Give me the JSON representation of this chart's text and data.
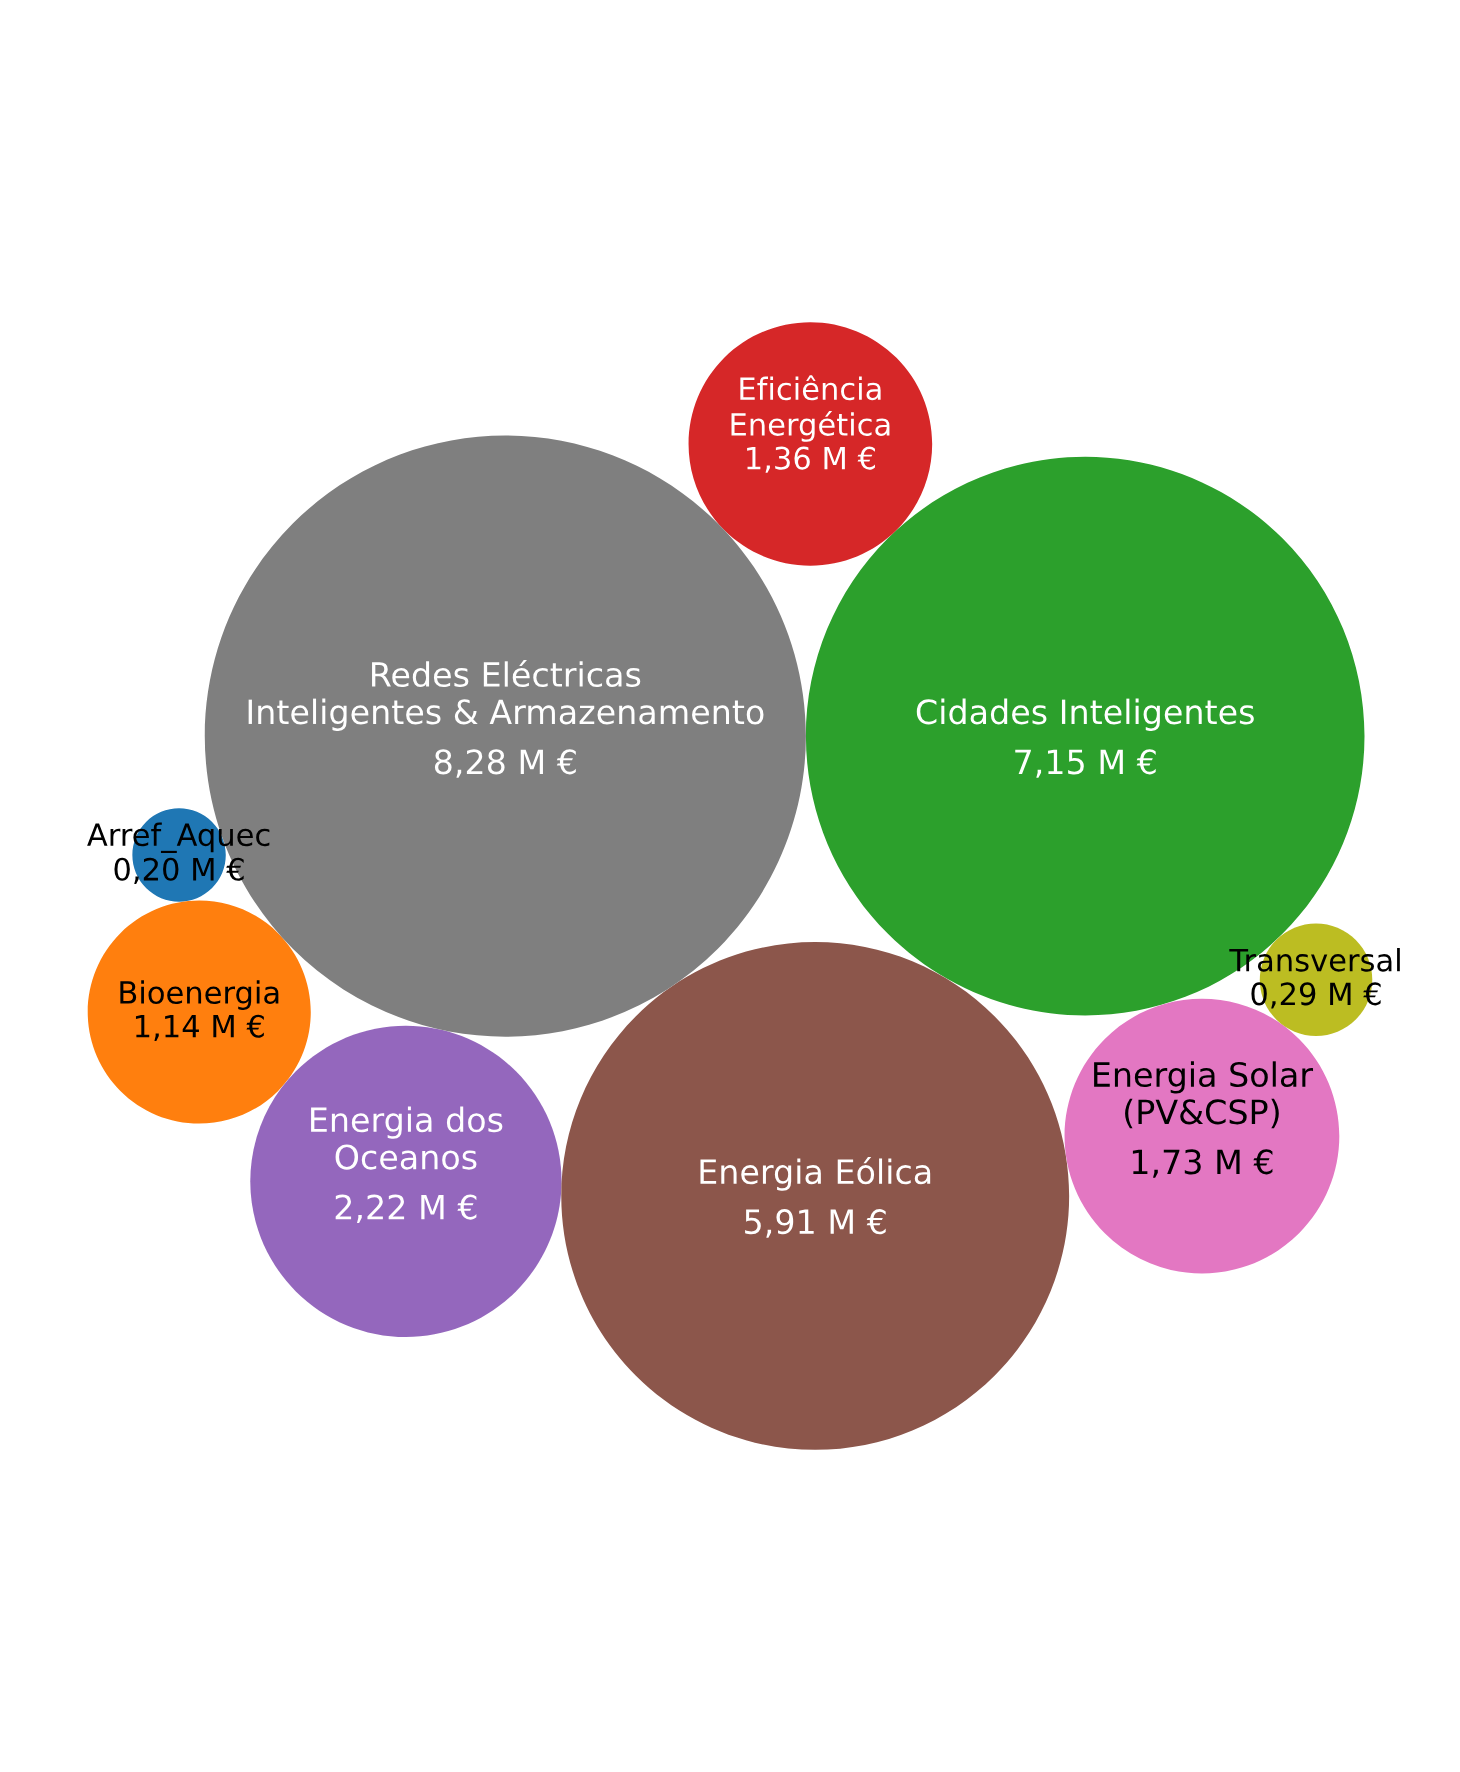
{
  "chart_data": {
    "type": "other",
    "categories": [
      "Arref_Aquec",
      "Bioenergia",
      "Cidades Inteligentes",
      "Eficiência Energética",
      "Energia dos Oceanos",
      "Energia Eólica",
      "Energia Solar (PV&CSP)",
      "Redes Eléctricas Inteligentes & Armazenamento",
      "Transversal"
    ],
    "values": [
      0.2,
      1.14,
      7.15,
      1.36,
      2.22,
      5.91,
      1.73,
      8.28,
      0.29
    ],
    "value_labels": [
      "0,20 M €",
      "1,14 M €",
      "7,15 M €",
      "1,36 M €",
      "2,22 M €",
      "5,91 M €",
      "1,73 M €",
      "8,28 M €",
      "0,29 M €"
    ],
    "colors": [
      "#1f77b4",
      "#ff7f0e",
      "#2ca02c",
      "#d62728",
      "#9467bd",
      "#8c564b",
      "#e377c2",
      "#7f7f7f",
      "#bcbd22"
    ]
  }
}
